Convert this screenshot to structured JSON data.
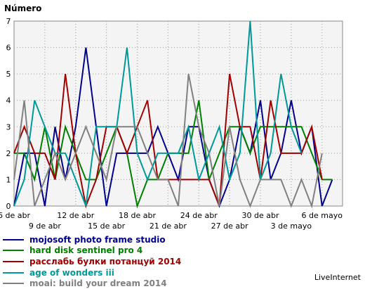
{
  "chart_data": {
    "type": "line",
    "title": "",
    "ylabel": "Número",
    "xlabel": "",
    "ylim": [
      0,
      7
    ],
    "yticks": [
      0,
      1,
      2,
      3,
      4,
      5,
      6,
      7
    ],
    "grid": true,
    "legend_position": "bottom-left",
    "x_count": 33,
    "x_tick_labels": [
      {
        "index": 0,
        "label": "6 de abr",
        "row": 0
      },
      {
        "index": 3,
        "label": "9 de abr",
        "row": 1
      },
      {
        "index": 6,
        "label": "12 de abr",
        "row": 0
      },
      {
        "index": 9,
        "label": "15 de abr",
        "row": 1
      },
      {
        "index": 12,
        "label": "18 de abr",
        "row": 0
      },
      {
        "index": 15,
        "label": "21 de abr",
        "row": 1
      },
      {
        "index": 18,
        "label": "24 de abr",
        "row": 0
      },
      {
        "index": 21,
        "label": "27 de abr",
        "row": 1
      },
      {
        "index": 24,
        "label": "30 de abr",
        "row": 0
      },
      {
        "index": 27,
        "label": "3 de mayo",
        "row": 1
      },
      {
        "index": 30,
        "label": "6 de mayo",
        "row": 0
      }
    ],
    "series": [
      {
        "name": "mojosoft photo frame studio",
        "color": "#00008b",
        "values": [
          0,
          2,
          2,
          0,
          3,
          1,
          3,
          6,
          3,
          0,
          2,
          2,
          2,
          2,
          3,
          2,
          1,
          3,
          3,
          1,
          0,
          1,
          3,
          2,
          4,
          1,
          2,
          4,
          2,
          3,
          0,
          1
        ]
      },
      {
        "name": "hard disk sentinel pro 4",
        "color": "#008000",
        "values": [
          2,
          2,
          1,
          3,
          1,
          3,
          2,
          1,
          1,
          2,
          3,
          2,
          0,
          1,
          1,
          2,
          2,
          2,
          4,
          1,
          2,
          3,
          3,
          2,
          3,
          3,
          3,
          3,
          3,
          2,
          1,
          1
        ]
      },
      {
        "name": "расслабь булки потанцуй 2014",
        "color": "#a00000",
        "values": [
          2,
          3,
          2,
          2,
          1,
          5,
          2,
          0,
          1,
          3,
          3,
          2,
          3,
          4,
          1,
          1,
          1,
          1,
          1,
          1,
          0,
          5,
          3,
          3,
          1,
          4,
          2,
          2,
          2,
          3,
          1
        ]
      },
      {
        "name": "age of wonders iii",
        "color": "#009999",
        "values": [
          0,
          1,
          4,
          3,
          2,
          2,
          1,
          0,
          3,
          3,
          3,
          6,
          2,
          1,
          2,
          2,
          2,
          3,
          1,
          2,
          3,
          1,
          2,
          7,
          1,
          2,
          5,
          3,
          2
        ]
      },
      {
        "name": "moai: build your dream 2014",
        "color": "#808080",
        "values": [
          1,
          4,
          0,
          1,
          2,
          1,
          2,
          3,
          2,
          1,
          3,
          3,
          3,
          2,
          1,
          1,
          0,
          5,
          3,
          2,
          0,
          3,
          1,
          0,
          1,
          1,
          1,
          0,
          1,
          0,
          2
        ]
      }
    ]
  },
  "footer": {
    "brand": "LiveInternet"
  }
}
